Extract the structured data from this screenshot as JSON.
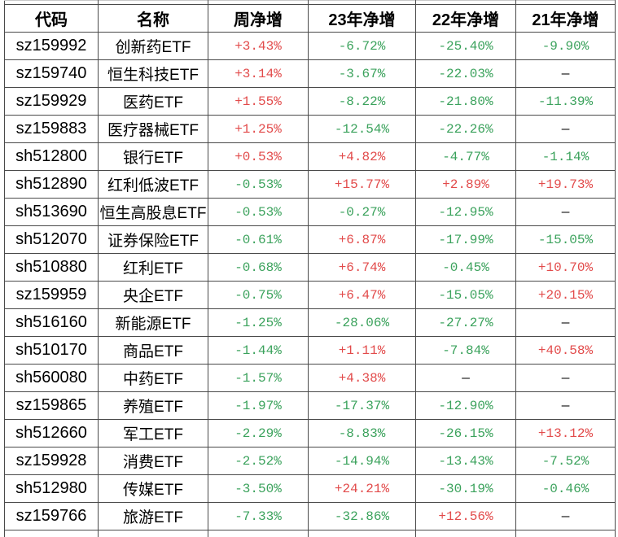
{
  "table": {
    "headers": [
      "代码",
      "名称",
      "周净增",
      "23年净增",
      "22年净增",
      "21年净增"
    ],
    "rows": [
      [
        "sz159992",
        "创新药ETF",
        "+3.43%",
        "-6.72%",
        "-25.40%",
        "-9.90%"
      ],
      [
        "sz159740",
        "恒生科技ETF",
        "+3.14%",
        "-3.67%",
        "-22.03%",
        "—"
      ],
      [
        "sz159929",
        "医药ETF",
        "+1.55%",
        "-8.22%",
        "-21.80%",
        "-11.39%"
      ],
      [
        "sz159883",
        "医疗器械ETF",
        "+1.25%",
        "-12.54%",
        "-22.26%",
        "—"
      ],
      [
        "sh512800",
        "银行ETF",
        "+0.53%",
        "+4.82%",
        "-4.77%",
        "-1.14%"
      ],
      [
        "sh512890",
        "红利低波ETF",
        "-0.53%",
        "+15.77%",
        "+2.89%",
        "+19.73%"
      ],
      [
        "sh513690",
        "恒生高股息ETF",
        "-0.53%",
        "-0.27%",
        "-12.95%",
        "—"
      ],
      [
        "sh512070",
        "证券保险ETF",
        "-0.61%",
        "+6.87%",
        "-17.99%",
        "-15.05%"
      ],
      [
        "sh510880",
        "红利ETF",
        "-0.68%",
        "+6.74%",
        "-0.45%",
        "+10.70%"
      ],
      [
        "sz159959",
        "央企ETF",
        "-0.75%",
        "+6.47%",
        "-15.05%",
        "+20.15%"
      ],
      [
        "sh516160",
        "新能源ETF",
        "-1.25%",
        "-28.06%",
        "-27.27%",
        "—"
      ],
      [
        "sh510170",
        "商品ETF",
        "-1.44%",
        "+1.11%",
        "-7.84%",
        "+40.58%"
      ],
      [
        "sh560080",
        "中药ETF",
        "-1.57%",
        "+4.38%",
        "—",
        "—"
      ],
      [
        "sz159865",
        "养殖ETF",
        "-1.97%",
        "-17.37%",
        "-12.90%",
        "—"
      ],
      [
        "sh512660",
        "军工ETF",
        "-2.29%",
        "-8.83%",
        "-26.15%",
        "+13.12%"
      ],
      [
        "sz159928",
        "消费ETF",
        "-2.52%",
        "-14.94%",
        "-13.43%",
        "-7.52%"
      ],
      [
        "sh512980",
        "传媒ETF",
        "-3.50%",
        "+24.21%",
        "-30.19%",
        "-0.46%"
      ],
      [
        "sz159766",
        "旅游ETF",
        "-7.33%",
        "-32.86%",
        "+12.56%",
        "—"
      ]
    ],
    "missing_placeholder": "—"
  },
  "colors": {
    "positive": "#e24b4b",
    "negative": "#3ba25c",
    "neutral": "#000000",
    "grid_border": "#4a4a4a"
  }
}
